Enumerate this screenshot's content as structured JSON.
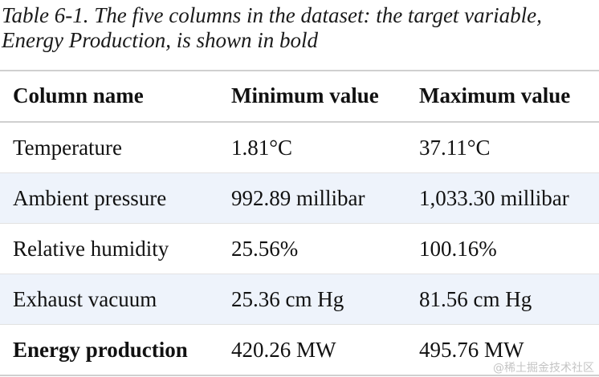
{
  "caption": "Table 6-1. The five columns in the dataset: the target variable, Energy Production, is shown in bold",
  "table": {
    "headers": [
      "Column name",
      "Minimum value",
      "Maximum value"
    ],
    "rows": [
      {
        "name": "Temperature",
        "min": "1.81°C",
        "max": "37.11°C"
      },
      {
        "name": "Ambient pressure",
        "min": "992.89 millibar",
        "max": "1,033.30 millibar"
      },
      {
        "name": "Relative humidity",
        "min": "25.56%",
        "max": "100.16%"
      },
      {
        "name": "Exhaust vacuum",
        "min": "25.36 cm Hg",
        "max": "81.56 cm Hg"
      },
      {
        "name": "Energy production",
        "min": "420.26 MW",
        "max": "495.76 MW"
      }
    ]
  },
  "watermark": "@稀土掘金技术社区",
  "colors": {
    "shaded_row": "#eef3fb",
    "rule": "#cfcfcf"
  }
}
